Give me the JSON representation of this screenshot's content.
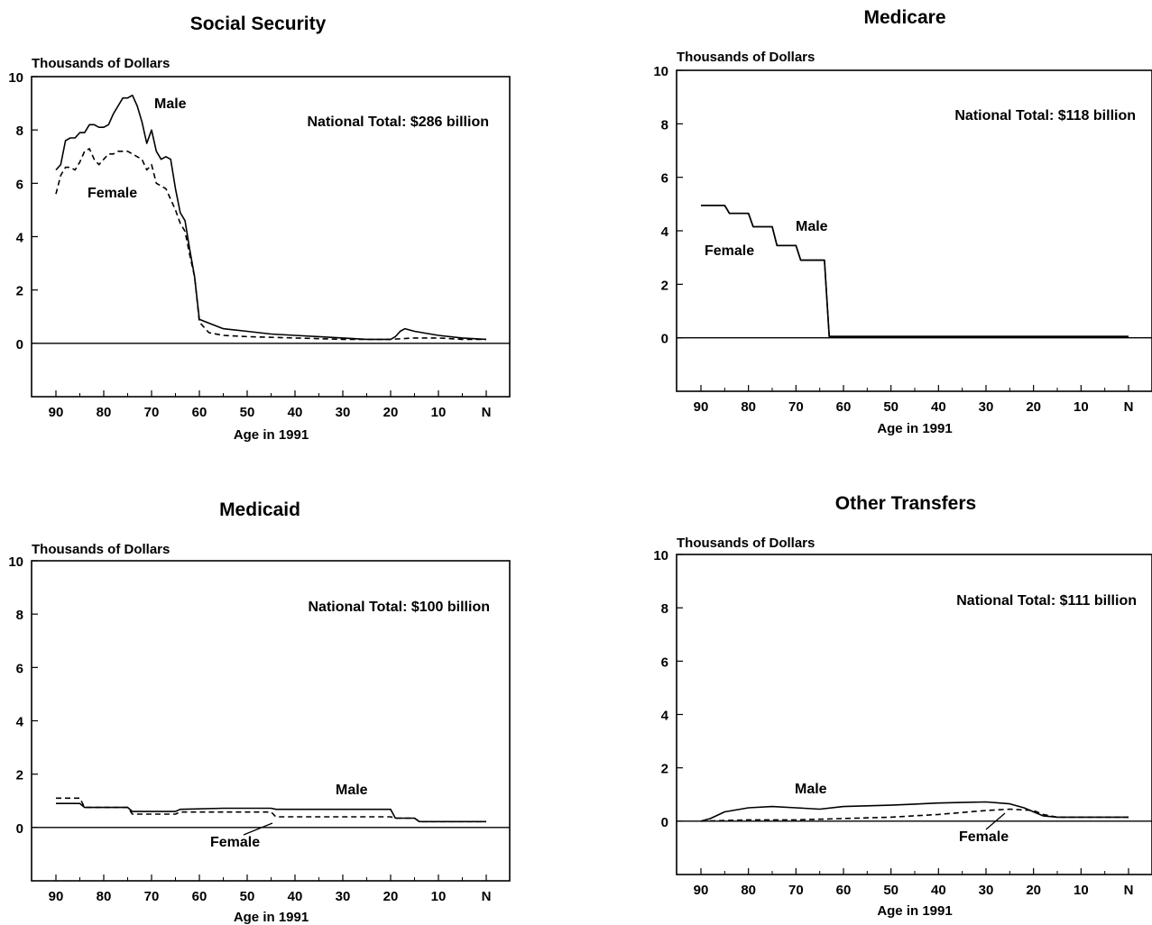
{
  "chart_data": [
    {
      "type": "line",
      "title": "Social Security",
      "ylabel": "Thousands of Dollars",
      "xlabel": "Age in 1991",
      "ylim": [
        -2,
        10
      ],
      "yticks": [
        "10",
        "8",
        "6",
        "4",
        "2",
        "0"
      ],
      "xticks": [
        "90",
        "80",
        "70",
        "60",
        "50",
        "40",
        "30",
        "20",
        "10",
        "N"
      ],
      "annotation": "National Total:  $286 billion",
      "grid": false,
      "series": [
        {
          "name": "Male",
          "style": "solid",
          "x": [
            90,
            89,
            88,
            87,
            86,
            85,
            84,
            83,
            82,
            81,
            80,
            79,
            78,
            77,
            76,
            75,
            74,
            73,
            72,
            71,
            70,
            69,
            68,
            67,
            66,
            65,
            64,
            63,
            62,
            61,
            60,
            55,
            50,
            45,
            40,
            35,
            30,
            25,
            20,
            19,
            18,
            17,
            15,
            10,
            5,
            0
          ],
          "y": [
            6.5,
            6.7,
            7.6,
            7.7,
            7.7,
            7.9,
            7.9,
            8.2,
            8.2,
            8.1,
            8.1,
            8.2,
            8.6,
            8.9,
            9.2,
            9.2,
            9.3,
            8.9,
            8.3,
            7.5,
            8.0,
            7.2,
            6.9,
            7.0,
            6.9,
            5.8,
            4.9,
            4.6,
            3.5,
            2.5,
            0.9,
            0.55,
            0.45,
            0.35,
            0.3,
            0.25,
            0.2,
            0.15,
            0.15,
            0.25,
            0.45,
            0.55,
            0.45,
            0.3,
            0.2,
            0.15
          ]
        },
        {
          "name": "Female",
          "style": "dashed",
          "x": [
            90,
            89,
            88,
            87,
            86,
            85,
            84,
            83,
            82,
            81,
            80,
            79,
            78,
            77,
            76,
            75,
            74,
            73,
            72,
            71,
            70,
            69,
            68,
            67,
            66,
            65,
            64,
            63,
            62,
            61,
            60,
            58,
            55,
            50,
            40,
            30,
            25,
            20,
            15,
            10,
            5,
            0
          ],
          "y": [
            5.6,
            6.3,
            6.6,
            6.6,
            6.5,
            6.8,
            7.2,
            7.3,
            6.9,
            6.7,
            6.9,
            7.1,
            7.1,
            7.2,
            7.2,
            7.2,
            7.1,
            7.0,
            6.9,
            6.5,
            6.7,
            6.0,
            5.9,
            5.8,
            5.4,
            5.0,
            4.5,
            4.2,
            3.3,
            2.5,
            0.8,
            0.4,
            0.3,
            0.25,
            0.2,
            0.15,
            0.15,
            0.15,
            0.2,
            0.2,
            0.15,
            0.15
          ]
        }
      ]
    },
    {
      "type": "line",
      "title": "Medicare",
      "ylabel": "Thousands of Dollars",
      "xlabel": "Age in 1991",
      "ylim": [
        -2,
        10
      ],
      "yticks": [
        "10",
        "8",
        "6",
        "4",
        "2",
        "0"
      ],
      "xticks": [
        "90",
        "80",
        "70",
        "60",
        "50",
        "40",
        "30",
        "20",
        "10",
        "N"
      ],
      "annotation": "National Total:  $118 billion",
      "grid": false,
      "series": [
        {
          "name": "Male",
          "style": "solid",
          "x": [
            90,
            85,
            84,
            80,
            79,
            75,
            74,
            70,
            69,
            65,
            64,
            63,
            50,
            40,
            30,
            20,
            10,
            0
          ],
          "y": [
            4.95,
            4.95,
            4.65,
            4.65,
            4.15,
            4.15,
            3.45,
            3.45,
            2.9,
            2.9,
            2.9,
            0.05,
            0.05,
            0.05,
            0.05,
            0.05,
            0.05,
            0.05
          ]
        },
        {
          "name": "Female",
          "style": "solid",
          "x": [
            90,
            85,
            84,
            80,
            79,
            75,
            74,
            70,
            69,
            65,
            64,
            63,
            50,
            40,
            30,
            20,
            10,
            0
          ],
          "y": [
            4.95,
            4.95,
            4.65,
            4.65,
            4.15,
            4.15,
            3.45,
            3.45,
            2.9,
            2.9,
            2.9,
            0.05,
            0.05,
            0.05,
            0.05,
            0.05,
            0.05,
            0.05
          ]
        }
      ]
    },
    {
      "type": "line",
      "title": "Medicaid",
      "ylabel": "Thousands of Dollars",
      "xlabel": "Age in 1991",
      "ylim": [
        -2,
        10
      ],
      "yticks": [
        "10",
        "8",
        "6",
        "4",
        "2",
        "0"
      ],
      "xticks": [
        "90",
        "80",
        "70",
        "60",
        "50",
        "40",
        "30",
        "20",
        "10",
        "N"
      ],
      "annotation": "National Total:  $100 billion",
      "grid": false,
      "series": [
        {
          "name": "Male",
          "style": "solid",
          "x": [
            90,
            85,
            84,
            75,
            74,
            65,
            64,
            55,
            45,
            44,
            20,
            19,
            15,
            14,
            5,
            0
          ],
          "y": [
            0.9,
            0.9,
            0.75,
            0.75,
            0.6,
            0.6,
            0.68,
            0.72,
            0.72,
            0.68,
            0.68,
            0.35,
            0.35,
            0.22,
            0.22,
            0.22
          ]
        },
        {
          "name": "Female",
          "style": "dashed",
          "x": [
            90,
            85,
            84,
            75,
            74,
            65,
            64,
            45,
            44,
            20,
            19,
            15,
            14,
            5,
            0
          ],
          "y": [
            1.1,
            1.1,
            0.75,
            0.75,
            0.5,
            0.5,
            0.58,
            0.58,
            0.4,
            0.4,
            0.35,
            0.35,
            0.22,
            0.22,
            0.22
          ]
        }
      ]
    },
    {
      "type": "line",
      "title": "Other Transfers",
      "ylabel": "Thousands of Dollars",
      "xlabel": "Age in 1991",
      "ylim": [
        -2,
        10
      ],
      "yticks": [
        "10",
        "8",
        "6",
        "4",
        "2",
        "0"
      ],
      "xticks": [
        "90",
        "80",
        "70",
        "60",
        "50",
        "40",
        "30",
        "20",
        "10",
        "N"
      ],
      "annotation": "National Total:  $111 billion",
      "grid": false,
      "series": [
        {
          "name": "Male",
          "style": "solid",
          "x": [
            90,
            88,
            85,
            80,
            75,
            70,
            65,
            60,
            50,
            40,
            35,
            30,
            25,
            22,
            20,
            18,
            15,
            10,
            5,
            0
          ],
          "y": [
            0.0,
            0.1,
            0.35,
            0.5,
            0.55,
            0.5,
            0.45,
            0.55,
            0.6,
            0.68,
            0.7,
            0.72,
            0.65,
            0.5,
            0.35,
            0.2,
            0.15,
            0.15,
            0.15,
            0.15
          ]
        },
        {
          "name": "Female",
          "style": "dashed",
          "x": [
            90,
            80,
            70,
            60,
            50,
            40,
            30,
            25,
            20,
            18,
            15,
            10,
            5,
            0
          ],
          "y": [
            0.0,
            0.05,
            0.05,
            0.1,
            0.15,
            0.25,
            0.4,
            0.45,
            0.4,
            0.25,
            0.15,
            0.15,
            0.15,
            0.15
          ]
        }
      ]
    }
  ]
}
